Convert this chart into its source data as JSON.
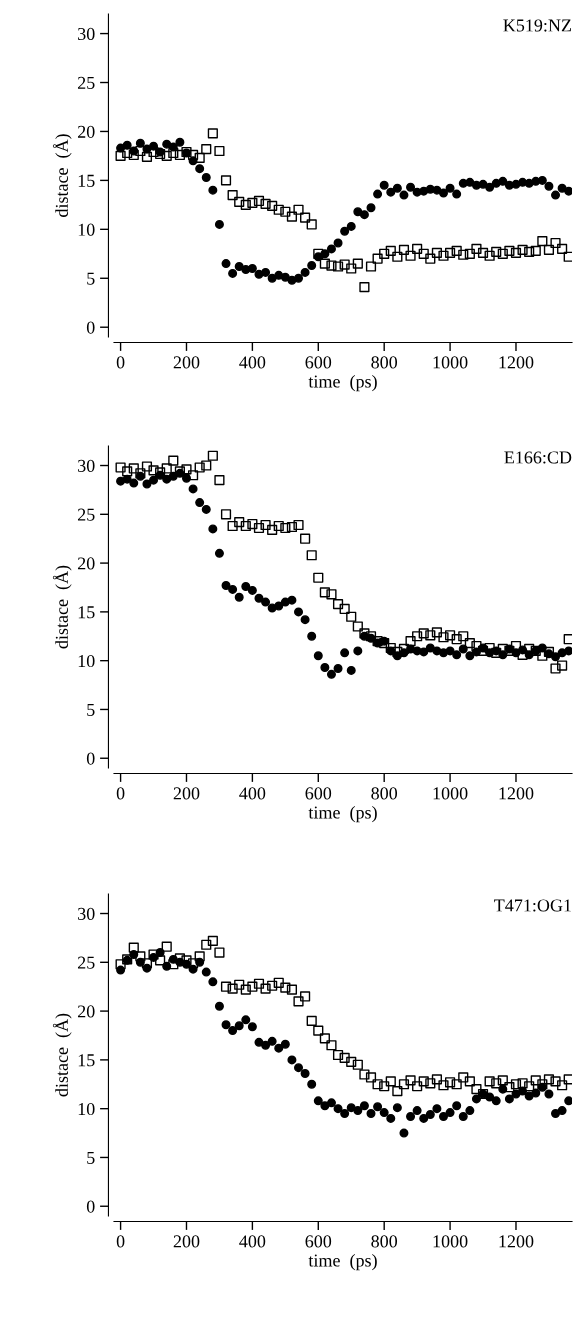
{
  "chart_data": [
    {
      "type": "scatter",
      "xlabel": "time  (ps)",
      "ylabel": "distace  (Å)",
      "annotations": [
        "K519:NZ"
      ],
      "x": [
        0,
        20,
        40,
        60,
        80,
        100,
        120,
        140,
        160,
        180,
        200,
        220,
        240,
        260,
        280,
        300,
        320,
        340,
        360,
        380,
        400,
        420,
        440,
        460,
        480,
        500,
        520,
        540,
        560,
        580,
        600,
        620,
        640,
        660,
        680,
        700,
        720,
        740,
        760,
        780,
        800,
        820,
        840,
        860,
        880,
        900,
        920,
        940,
        960,
        980,
        1000,
        1020,
        1040,
        1060,
        1080,
        1100,
        1120,
        1140,
        1160,
        1180,
        1200,
        1220,
        1240,
        1260,
        1280,
        1300,
        1320,
        1340,
        1360
      ],
      "xlim": [
        -20,
        1370
      ],
      "ylim": [
        -1,
        32
      ],
      "xticks": [
        0,
        200,
        400,
        600,
        800,
        1000,
        1200
      ],
      "yticks": [
        0,
        5,
        10,
        15,
        20,
        25,
        30
      ],
      "grid": false,
      "series": [
        {
          "color": "#000000",
          "marker": "circle",
          "values": [
            18.3,
            18.6,
            18.0,
            18.8,
            18.2,
            18.5,
            17.9,
            18.7,
            18.4,
            18.9,
            17.8,
            17.0,
            16.2,
            15.3,
            14.0,
            10.5,
            6.5,
            5.5,
            6.2,
            5.9,
            6.0,
            5.4,
            5.6,
            5.0,
            5.3,
            5.1,
            4.8,
            5.0,
            5.6,
            6.3,
            7.2,
            7.5,
            8.0,
            8.6,
            9.8,
            10.3,
            11.8,
            11.5,
            12.2,
            13.6,
            14.5,
            13.8,
            14.2,
            13.5,
            14.3,
            13.8,
            13.9,
            14.1,
            14.0,
            13.7,
            14.2,
            13.6,
            14.7,
            14.8,
            14.5,
            14.6,
            14.3,
            14.7,
            14.9,
            14.5,
            14.6,
            14.8,
            14.7,
            14.9,
            15.0,
            14.4,
            13.5,
            14.2,
            13.9
          ]
        },
        {
          "color": "#000000",
          "marker": "square",
          "values": [
            17.5,
            17.8,
            17.6,
            18.0,
            17.4,
            17.9,
            17.7,
            17.5,
            17.8,
            17.6,
            17.9,
            17.6,
            17.3,
            18.2,
            19.8,
            18.0,
            15.0,
            13.5,
            12.8,
            12.5,
            12.7,
            12.9,
            12.6,
            12.4,
            12.0,
            11.8,
            11.3,
            12.0,
            11.2,
            10.5,
            7.5,
            6.5,
            6.3,
            6.2,
            6.4,
            6.0,
            6.5,
            4.1,
            6.2,
            7.0,
            7.5,
            7.8,
            7.2,
            7.9,
            7.3,
            8.0,
            7.5,
            7.0,
            7.6,
            7.3,
            7.6,
            7.8,
            7.4,
            7.5,
            8.0,
            7.6,
            7.3,
            7.7,
            7.5,
            7.8,
            7.6,
            7.9,
            7.7,
            7.8,
            8.8,
            7.9,
            8.6,
            8.0,
            7.2
          ]
        }
      ]
    },
    {
      "type": "scatter",
      "xlabel": "time  (ps)",
      "ylabel": "distace  (Å)",
      "annotations": [
        "E166:CD"
      ],
      "x": [
        0,
        20,
        40,
        60,
        80,
        100,
        120,
        140,
        160,
        180,
        200,
        220,
        240,
        260,
        280,
        300,
        320,
        340,
        360,
        380,
        400,
        420,
        440,
        460,
        480,
        500,
        520,
        540,
        560,
        580,
        600,
        620,
        640,
        660,
        680,
        700,
        720,
        740,
        760,
        780,
        800,
        820,
        840,
        860,
        880,
        900,
        920,
        940,
        960,
        980,
        1000,
        1020,
        1040,
        1060,
        1080,
        1100,
        1120,
        1140,
        1160,
        1180,
        1200,
        1220,
        1240,
        1260,
        1280,
        1300,
        1320,
        1340,
        1360
      ],
      "xlim": [
        -20,
        1370
      ],
      "ylim": [
        -1,
        32
      ],
      "xticks": [
        0,
        200,
        400,
        600,
        800,
        1000,
        1200
      ],
      "yticks": [
        0,
        5,
        10,
        15,
        20,
        25,
        30
      ],
      "grid": false,
      "series": [
        {
          "color": "#000000",
          "marker": "circle",
          "values": [
            28.4,
            28.6,
            28.2,
            28.9,
            28.1,
            28.5,
            29.0,
            28.6,
            28.9,
            29.2,
            28.7,
            27.6,
            26.2,
            25.5,
            23.5,
            21.0,
            17.7,
            17.3,
            16.5,
            17.6,
            17.2,
            16.4,
            16.0,
            15.4,
            15.6,
            16.0,
            16.2,
            15.0,
            14.2,
            12.5,
            10.5,
            9.3,
            8.6,
            9.2,
            10.8,
            9.0,
            11.0,
            12.5,
            12.3,
            11.8,
            12.0,
            11.0,
            10.5,
            10.8,
            11.2,
            11.0,
            10.9,
            11.3,
            11.0,
            10.8,
            11.0,
            10.6,
            11.2,
            10.5,
            10.9,
            11.3,
            10.8,
            11.0,
            10.6,
            11.2,
            10.8,
            11.1,
            10.6,
            11.0,
            11.3,
            10.7,
            10.4,
            10.8,
            11.0
          ]
        },
        {
          "color": "#000000",
          "marker": "square",
          "values": [
            29.8,
            29.4,
            29.7,
            29.2,
            29.9,
            29.5,
            29.3,
            29.7,
            30.5,
            29.4,
            29.6,
            29.0,
            29.8,
            30.0,
            31.0,
            28.5,
            25.0,
            23.8,
            24.2,
            23.8,
            24.0,
            23.6,
            23.9,
            23.4,
            23.8,
            23.6,
            23.7,
            23.9,
            22.5,
            20.8,
            18.5,
            17.0,
            16.8,
            15.8,
            15.3,
            14.5,
            13.5,
            12.8,
            12.5,
            12.0,
            11.8,
            11.3,
            10.9,
            11.2,
            12.0,
            12.5,
            12.8,
            12.6,
            12.9,
            12.4,
            12.6,
            12.2,
            12.5,
            11.8,
            11.5,
            11.0,
            11.3,
            10.8,
            11.2,
            11.0,
            11.5,
            10.6,
            11.2,
            11.0,
            10.5,
            10.9,
            9.2,
            9.5,
            12.2
          ]
        }
      ]
    },
    {
      "type": "scatter",
      "xlabel": "time  (ps)",
      "ylabel": "distace  (Å)",
      "annotations": [
        "T471:OG1"
      ],
      "x": [
        0,
        20,
        40,
        60,
        80,
        100,
        120,
        140,
        160,
        180,
        200,
        220,
        240,
        260,
        280,
        300,
        320,
        340,
        360,
        380,
        400,
        420,
        440,
        460,
        480,
        500,
        520,
        540,
        560,
        580,
        600,
        620,
        640,
        660,
        680,
        700,
        720,
        740,
        760,
        780,
        800,
        820,
        840,
        860,
        880,
        900,
        920,
        940,
        960,
        980,
        1000,
        1020,
        1040,
        1060,
        1080,
        1100,
        1120,
        1140,
        1160,
        1180,
        1200,
        1220,
        1240,
        1260,
        1280,
        1300,
        1320,
        1340,
        1360
      ],
      "xlim": [
        -20,
        1370
      ],
      "ylim": [
        -1,
        32
      ],
      "xticks": [
        0,
        200,
        400,
        600,
        800,
        1000,
        1200
      ],
      "yticks": [
        0,
        5,
        10,
        15,
        20,
        25,
        30
      ],
      "grid": false,
      "series": [
        {
          "color": "#000000",
          "marker": "circle",
          "values": [
            24.2,
            25.2,
            25.8,
            25.0,
            24.4,
            25.5,
            26.0,
            24.6,
            25.3,
            25.0,
            24.8,
            24.3,
            25.0,
            24.0,
            23.0,
            20.5,
            18.6,
            18.0,
            18.5,
            19.1,
            18.4,
            16.8,
            16.5,
            16.9,
            16.2,
            16.6,
            15.0,
            14.2,
            13.6,
            12.5,
            10.8,
            10.3,
            10.6,
            10.0,
            9.5,
            10.1,
            9.8,
            10.3,
            9.5,
            10.2,
            9.6,
            9.0,
            10.1,
            7.5,
            9.2,
            9.8,
            9.0,
            9.4,
            10.0,
            9.2,
            9.6,
            10.3,
            9.2,
            9.8,
            11.0,
            11.5,
            11.2,
            10.8,
            12.0,
            11.0,
            11.5,
            11.8,
            11.3,
            11.6,
            12.2,
            11.5,
            9.5,
            9.8,
            10.8
          ]
        },
        {
          "color": "#000000",
          "marker": "square",
          "values": [
            24.8,
            25.3,
            26.5,
            25.6,
            24.9,
            25.8,
            25.2,
            26.6,
            24.8,
            25.4,
            25.2,
            24.9,
            25.6,
            26.8,
            27.2,
            26.0,
            22.5,
            22.3,
            22.7,
            22.2,
            22.5,
            22.8,
            22.3,
            22.6,
            22.9,
            22.4,
            22.2,
            21.0,
            21.5,
            19.0,
            18.0,
            17.2,
            16.5,
            15.5,
            15.2,
            14.8,
            14.5,
            13.5,
            13.2,
            12.5,
            12.3,
            12.8,
            11.8,
            12.5,
            12.9,
            12.3,
            12.8,
            12.6,
            13.0,
            12.4,
            12.7,
            12.5,
            13.2,
            12.8,
            12.0,
            11.5,
            12.8,
            12.6,
            12.9,
            12.2,
            12.5,
            12.6,
            12.3,
            12.9,
            12.5,
            13.0,
            12.8,
            12.4,
            13.0
          ]
        }
      ]
    }
  ]
}
